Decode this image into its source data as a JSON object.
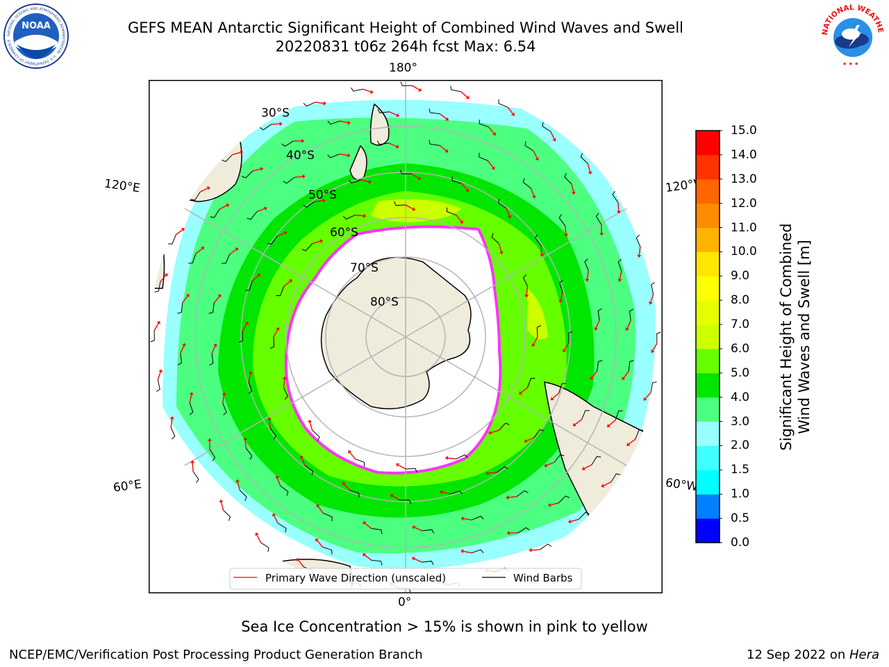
{
  "header": {
    "title_line1": "GEFS MEAN Antarctic Significant Height of Combined Wind Waves and Swell",
    "title_line2": "20220831 t06z 264h fcst   Max: 6.54"
  },
  "logos": {
    "left": {
      "text": "NOAA",
      "ring_text": "NATIONAL OCEANIC AND ATMOSPHERIC ADMINISTRATION · U.S. DEPARTMENT OF COMMERCE"
    },
    "right": {
      "ring_text": "NATIONAL WEATHER SERVICE"
    }
  },
  "map": {
    "meridian_labels": {
      "top": "180°",
      "bottom": "0°",
      "upper_left": "120°E",
      "upper_right": "120°W",
      "lower_left": "60°E",
      "lower_right": "60°W"
    },
    "latitude_labels": [
      "30°S",
      "40°S",
      "50°S",
      "60°S",
      "70°S",
      "80°S"
    ],
    "legend": {
      "wave_direction": "Primary Wave Direction (unscaled)",
      "wind_barbs": "Wind Barbs"
    },
    "colors": {
      "land": "#efecdc",
      "ice": "#ffffff",
      "ice_edge": "#ff33ff",
      "arrow": "#ff0000"
    }
  },
  "colorbar": {
    "label_line1": "Significant Height of Combined",
    "label_line2": "Wind Waves and Swell [m]",
    "ticks": [
      "0.0",
      "0.5",
      "1.0",
      "1.5",
      "2.0",
      "3.0",
      "4.0",
      "5.0",
      "6.0",
      "7.0",
      "8.0",
      "9.0",
      "10.0",
      "11.0",
      "12.0",
      "13.0",
      "14.0",
      "15.0"
    ],
    "colors": [
      "#0000ff",
      "#0080ff",
      "#00ffff",
      "#40ffff",
      "#99ffff",
      "#4dff80",
      "#00e600",
      "#66ff00",
      "#ccff00",
      "#e6ff00",
      "#ffff00",
      "#ffe600",
      "#ffb300",
      "#ff8c00",
      "#ff6600",
      "#ff3300",
      "#ff0000"
    ]
  },
  "caption": "Sea Ice Concentration > 15% is shown in pink to yellow",
  "footer": {
    "left": "NCEP/EMC/Verification Post Processing Product Generation Branch",
    "right_date": "12 Sep 2022 on ",
    "right_host": "Hera"
  }
}
